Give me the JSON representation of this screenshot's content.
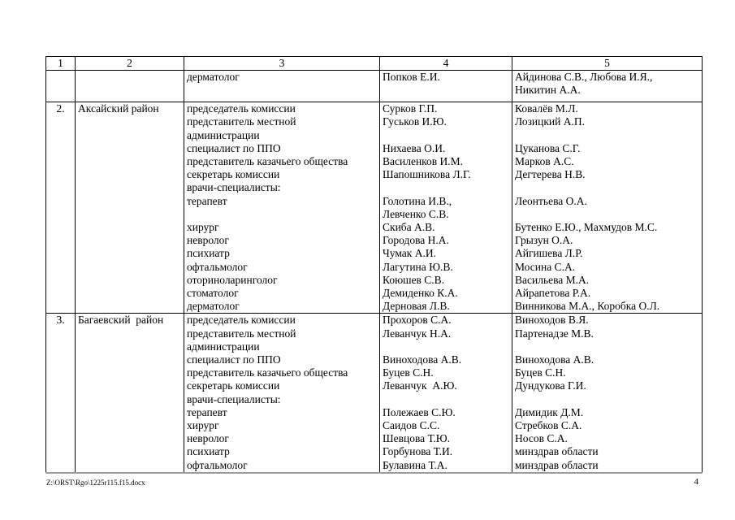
{
  "table": {
    "header": {
      "cols": [
        "1",
        "2",
        "3",
        "4",
        "5"
      ]
    },
    "rows": [
      {
        "num": "",
        "district": "",
        "roles": "дерматолог",
        "members": "Попков Е.И.",
        "attracted": "Айдинова С.В., Любова И.Я.,\nНикитин А.А."
      },
      {
        "num": "2.",
        "district": "Аксайский район",
        "roles": "председатель комиссии\nпредставитель местной\nадминистрации\nспециалист по ППО\nпредставитель казачьего общества\nсекретарь комиссии\nврачи-специалисты:\nтерапевт\n\nхирург\nневролог\nпсихиатр\nофтальмолог\nоториноларинголог\nстоматолог\nдерматолог",
        "members": "Сурков Г.П.\nГуськов И.Ю.\n\nНихаева О.И.\nВасиленков И.М.\nШапошникова Л.Г.\n\nГолотина И.В.,\nЛевченко С.В.\nСкиба А.В.\nГородова Н.А.\nЧумак А.И.\nЛагутина Ю.В.\nКоюшев С.В.\nДемиденко К.А.\nДерновая Л.В.",
        "attracted": "Ковалёв М.Л.\nЛозицкий А.П.\n\nЦуканова С.Г.\nМарков А.С.\nДегтерева Н.В.\n\nЛеонтьева О.А.\n\nБутенко Е.Ю., Махмудов М.С.\nГрызун О.А.\nАйгишева Л.Р.\nМосина С.А.\nВасильева М.А.\nАйрапетова Р.А.\nВинникова М.А., Коробка О.Л."
      },
      {
        "num": "3.",
        "district": "Багаевский  район",
        "roles": "председатель комиссии\nпредставитель местной\nадминистрации\nспециалист по ППО\nпредставитель казачьего общества\nсекретарь комиссии\nврачи-специалисты:\nтерапевт\nхирург\nневролог\nпсихиатр\nофтальмолог",
        "members": "Прохоров С.А.\nЛеванчук Н.А.\n\nВиноходова А.В.\nБуцев С.Н.\nЛеванчук  А.Ю.\n\nПолежаев С.Ю.\nСаидов С.С.\nШевцова Т.Ю.\nГорбунова Т.И.\nБулавина Т.А.",
        "attracted": "Виноходов В.Я.\nПартенадзе М.В.\n\nВиноходова А.В.\nБуцев С.Н.\nДундукова Г.И.\n\nДимидик Д.М.\nСтребков С.А.\nНосов С.А.\nминздрав области\nминздрав области"
      }
    ]
  },
  "footer": {
    "path": "Z:\\ORST\\Rgo\\1225r115.f15.docx",
    "page": "4"
  }
}
